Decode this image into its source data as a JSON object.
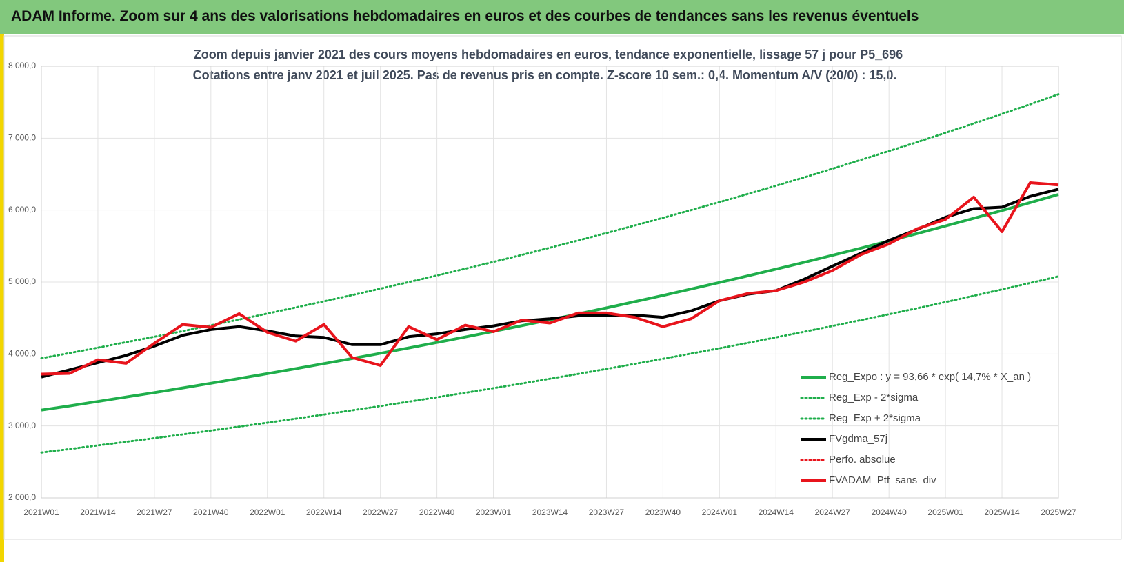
{
  "header": {
    "title": "ADAM Informe. Zoom sur 4 ans des valorisations hebdomadaires en euros et des courbes de tendances sans les revenus éventuels"
  },
  "chart_data": {
    "type": "line",
    "title": "Zoom depuis janvier 2021 des cours moyens hebdomadaires  en euros, tendance exponentielle, lissage 57 j pour P5_696",
    "subtitle": "Cotations entre janv 2021 et juil 2025. Pas de revenus pris en compte. Z-score 10 sem.: 0,4. Momentum A/V (20/0) : 15,0.",
    "categories": [
      "2021W01",
      null,
      "2021W14",
      null,
      "2021W27",
      null,
      "2021W40",
      null,
      "2022W01",
      null,
      "2022W14",
      null,
      "2022W27",
      null,
      "2022W40",
      null,
      "2023W01",
      null,
      "2023W14",
      null,
      "2023W27",
      null,
      "2023W40",
      null,
      "2024W01",
      null,
      "2024W14",
      null,
      "2024W27",
      null,
      "2024W40",
      null,
      "2025W01",
      null,
      "2025W14",
      null,
      "2025W27"
    ],
    "ylim": [
      2000,
      8000
    ],
    "yticks": [
      {
        "value": 2000,
        "label": "2 000,0"
      },
      {
        "value": 3000,
        "label": "3 000,0"
      },
      {
        "value": 4000,
        "label": "4 000,0"
      },
      {
        "value": 5000,
        "label": "5 000,0"
      },
      {
        "value": 6000,
        "label": "6 000,0"
      },
      {
        "value": 7000,
        "label": "7 000,0"
      },
      {
        "value": 8000,
        "label": "8 000,0"
      }
    ],
    "grid": true,
    "legend": "lower-right",
    "series": [
      {
        "name": "Reg_Expo : y = 93,66 * exp( 14,7% *  X_an )",
        "color": "#1fae4b",
        "line_style": "solid",
        "values": [
          3220,
          3279,
          3340,
          3402,
          3464,
          3528,
          3593,
          3660,
          3727,
          3796,
          3866,
          3937,
          4010,
          4084,
          4159,
          4236,
          4314,
          4393,
          4475,
          4557,
          4641,
          4727,
          4814,
          4903,
          4993,
          5085,
          5179,
          5274,
          5372,
          5471,
          5572,
          5674,
          5779,
          5886,
          5994,
          6104,
          6217
        ]
      },
      {
        "name": "Reg_Exp - 2*sigma",
        "color": "#1fae4b",
        "line_style": "dotted",
        "values": [
          2631,
          2679,
          2729,
          2779,
          2830,
          2882,
          2935,
          2990,
          3045,
          3101,
          3158,
          3217,
          3276,
          3337,
          3398,
          3461,
          3525,
          3589,
          3656,
          3723,
          3792,
          3862,
          3933,
          4006,
          4079,
          4154,
          4231,
          4309,
          4389,
          4470,
          4552,
          4636,
          4721,
          4809,
          4897,
          4987,
          5079
        ]
      },
      {
        "name": "Reg_Exp + 2*sigma",
        "color": "#1fae4b",
        "line_style": "dotted",
        "values": [
          3941,
          4013,
          4088,
          4164,
          4240,
          4318,
          4398,
          4480,
          4562,
          4646,
          4732,
          4819,
          4908,
          4999,
          5091,
          5185,
          5280,
          5377,
          5477,
          5578,
          5681,
          5786,
          5892,
          6001,
          6111,
          6224,
          6339,
          6455,
          6575,
          6697,
          6820,
          6945,
          7074,
          7204,
          7337,
          7471,
          7610
        ]
      },
      {
        "name": "FVgdma_57j",
        "color": "#000000",
        "line_style": "solid",
        "values": [
          3680,
          3780,
          3880,
          3980,
          4110,
          4260,
          4340,
          4380,
          4320,
          4250,
          4230,
          4130,
          4130,
          4240,
          4280,
          4340,
          4390,
          4460,
          4490,
          4530,
          4540,
          4540,
          4510,
          4600,
          4740,
          4830,
          4880,
          5040,
          5220,
          5400,
          5580,
          5730,
          5900,
          6020,
          6040,
          6190,
          6290
        ]
      },
      {
        "name": "Perfo. absolue",
        "color": "#e8141c",
        "line_style": "dotted",
        "values": [
          null,
          null,
          null,
          null,
          null,
          null,
          null,
          null,
          null,
          null,
          null,
          null,
          null,
          null,
          null,
          null,
          null,
          null,
          null,
          null,
          null,
          null,
          null,
          null,
          null,
          null,
          null,
          null,
          null,
          null,
          null,
          null,
          null,
          null,
          null,
          null,
          null
        ]
      },
      {
        "name": "FVADAM_Ptf_sans_div",
        "color": "#e8141c",
        "line_style": "solid",
        "values": [
          3720,
          3730,
          3920,
          3870,
          4150,
          4410,
          4370,
          4560,
          4300,
          4180,
          4410,
          3950,
          3840,
          4380,
          4200,
          4400,
          4310,
          4470,
          4430,
          4570,
          4570,
          4510,
          4380,
          4490,
          4740,
          4840,
          4880,
          5000,
          5160,
          5380,
          5530,
          5740,
          5870,
          6180,
          5700,
          6380,
          6350
        ]
      }
    ]
  }
}
